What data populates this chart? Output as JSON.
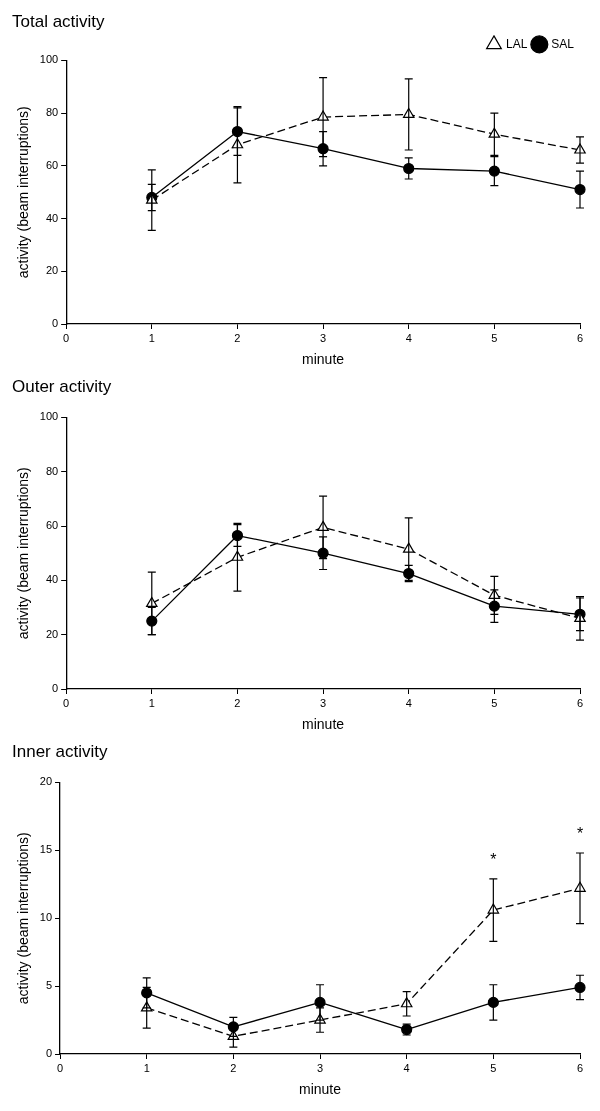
{
  "chart_data": [
    {
      "type": "line",
      "title": "Total activity",
      "xlabel": "minute",
      "ylabel": "activity (beam interruptions)",
      "x": [
        1,
        2,
        3,
        4,
        5,
        6
      ],
      "xlim": [
        0,
        6
      ],
      "xticks": [
        0,
        1,
        2,
        3,
        4,
        5,
        6
      ],
      "ylim": [
        0,
        100
      ],
      "yticks": [
        0,
        20,
        40,
        60,
        80,
        100
      ],
      "grid": false,
      "legend": "top right",
      "series": [
        {
          "name": "SAL",
          "color": "#000000",
          "marker": "circle",
          "line_style": "solid",
          "values": [
            48,
            73,
            66.5,
            59,
            58,
            51
          ],
          "errors": [
            5,
            9,
            6.5,
            4,
            5.5,
            7
          ]
        },
        {
          "name": "LAL",
          "color": "#000000",
          "marker": "triangle",
          "line_style": "dashed",
          "values": [
            47,
            68,
            78.5,
            79.5,
            72,
            66
          ],
          "errors": [
            11.5,
            14.5,
            15,
            13.5,
            8,
            5
          ]
        }
      ]
    },
    {
      "type": "line",
      "title": "Outer activity",
      "xlabel": "minute",
      "ylabel": "activity (beam interruptions)",
      "x": [
        1,
        2,
        3,
        4,
        5,
        6
      ],
      "xlim": [
        0,
        6
      ],
      "xticks": [
        0,
        1,
        2,
        3,
        4,
        5,
        6
      ],
      "ylim": [
        0,
        100
      ],
      "yticks": [
        0,
        20,
        40,
        60,
        80,
        100
      ],
      "grid": false,
      "legend": false,
      "series": [
        {
          "color": "#000000",
          "marker": "circle",
          "line_style": "solid",
          "values": [
            25,
            56.5,
            50,
            42.5,
            30.5,
            27.5
          ],
          "errors": [
            5,
            4,
            6,
            3,
            6,
            6
          ]
        },
        {
          "color": "#000000",
          "marker": "triangle",
          "line_style": "dashed",
          "values": [
            31.5,
            48.5,
            59.5,
            51.5,
            34.5,
            26
          ],
          "errors": [
            11.5,
            12.5,
            11.5,
            11.5,
            7,
            8
          ]
        }
      ]
    },
    {
      "type": "line",
      "title": "Inner activity",
      "xlabel": "minute",
      "ylabel": "activity (beam interruptions)",
      "x": [
        1,
        2,
        3,
        4,
        5,
        6
      ],
      "xlim": [
        0,
        6
      ],
      "xticks": [
        0,
        1,
        2,
        3,
        4,
        5,
        6
      ],
      "ylim": [
        0,
        20
      ],
      "yticks": [
        0,
        5,
        10,
        15,
        20
      ],
      "grid": false,
      "legend": false,
      "annotations": [
        {
          "text": "*",
          "x": 5,
          "y": 10.6
        },
        {
          "text": "*",
          "x": 6,
          "y": 12.2
        }
      ],
      "series": [
        {
          "color": "#000000",
          "marker": "circle",
          "line_style": "solid",
          "values": [
            4.5,
            2.0,
            3.8,
            1.8,
            3.8,
            4.9
          ],
          "errors": [
            1.1,
            0.7,
            1.3,
            0.4,
            1.3,
            0.9
          ]
        },
        {
          "color": "#000000",
          "marker": "triangle",
          "line_style": "dashed",
          "values": [
            3.4,
            1.3,
            2.5,
            3.7,
            10.6,
            12.2
          ],
          "errors": [
            1.5,
            0.8,
            0.9,
            0.9,
            2.3,
            2.6
          ]
        }
      ]
    }
  ]
}
